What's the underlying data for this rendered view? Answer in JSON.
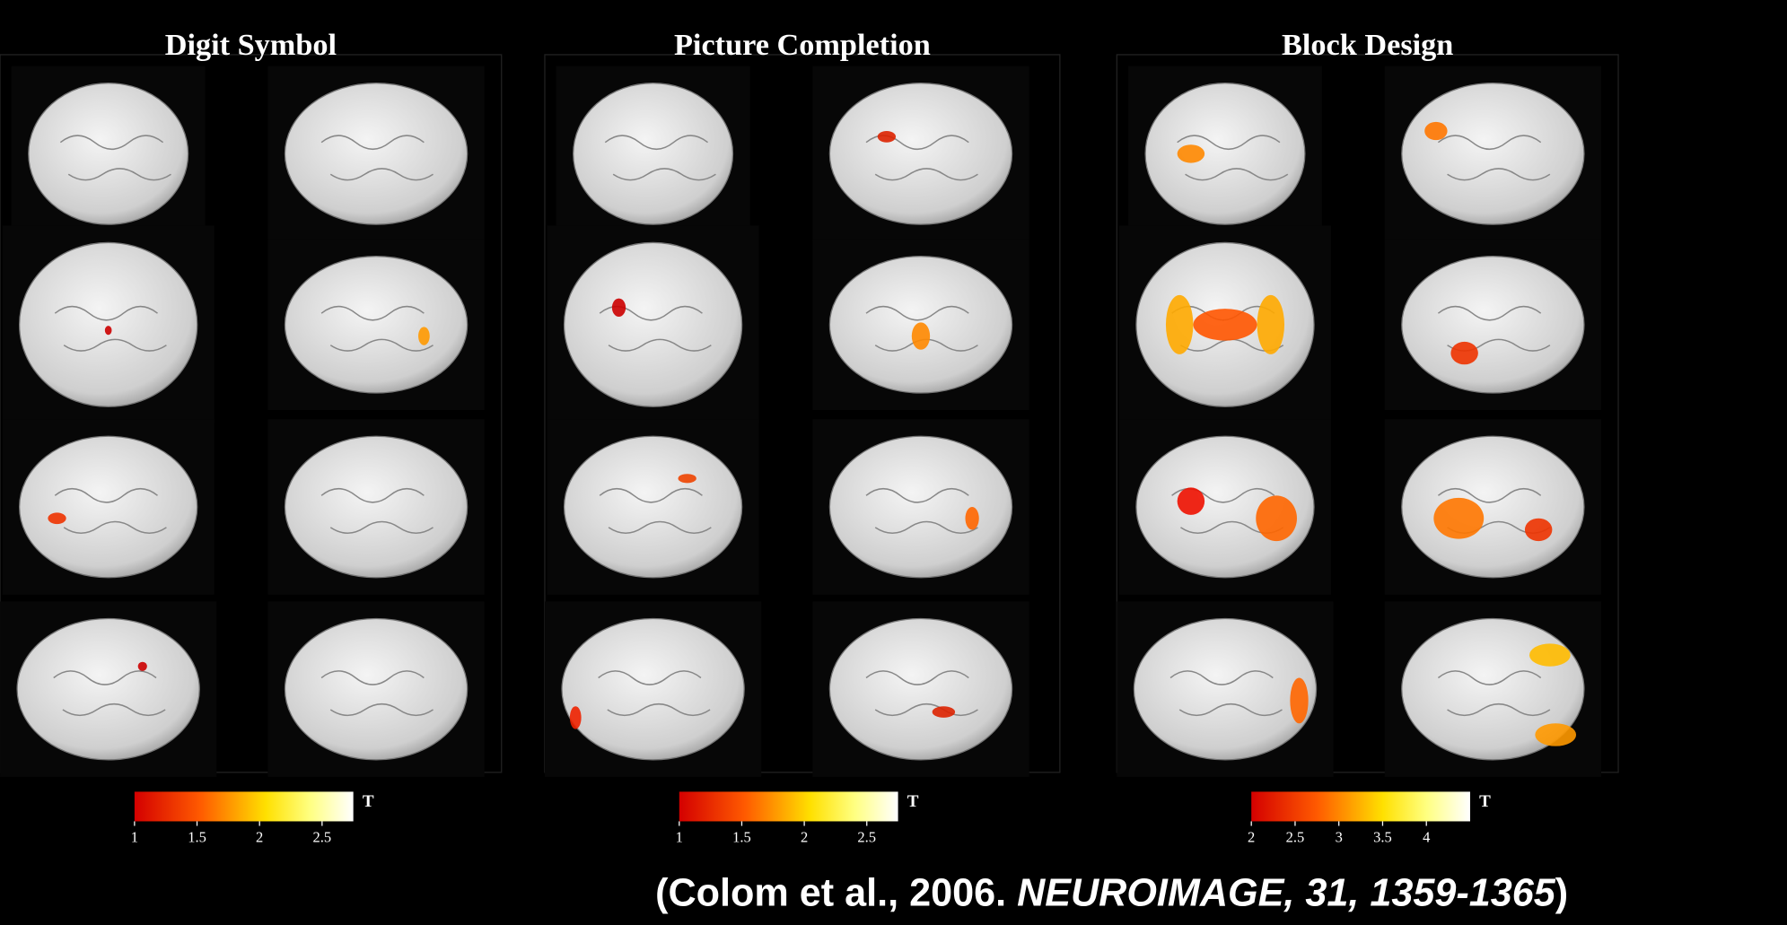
{
  "panels": [
    {
      "title": "Digit Symbol",
      "colorbar": {
        "unit_label": "T",
        "lim": [
          1,
          2.75
        ],
        "ticks": [
          1,
          1.5,
          2,
          2.5
        ]
      }
    },
    {
      "title": "Picture Completion",
      "colorbar": {
        "unit_label": "T",
        "lim": [
          1,
          2.75
        ],
        "ticks": [
          1,
          1.5,
          2,
          2.5
        ]
      }
    },
    {
      "title": "Block Design",
      "colorbar": {
        "unit_label": "T",
        "lim": [
          2,
          4.5
        ],
        "ticks": [
          2,
          2.5,
          3,
          3.5,
          4
        ]
      }
    }
  ],
  "citation": {
    "authors": "(Colom et al., 2006.",
    "journal": "NEUROIMAGE, 31, 1359-1365",
    "close": ")"
  }
}
